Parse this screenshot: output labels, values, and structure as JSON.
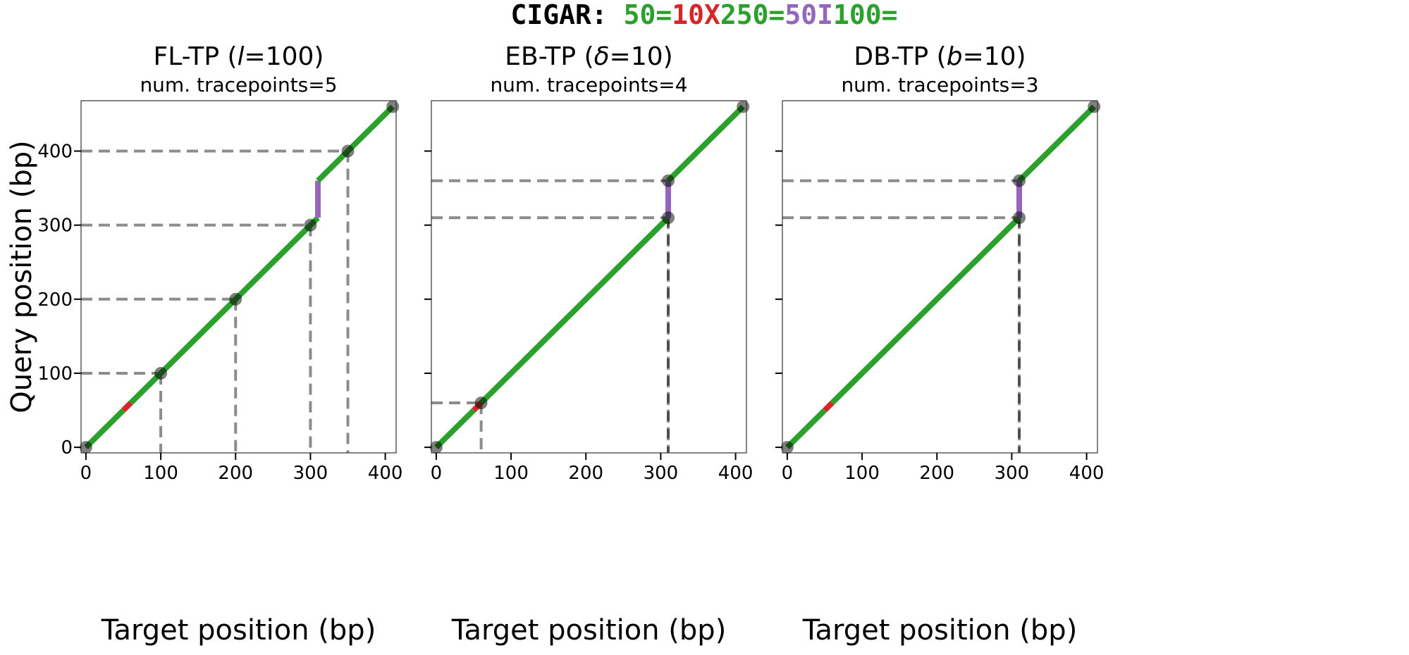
{
  "chart_data": {
    "type": "line",
    "suptitle": {
      "prefix": "CIGAR:",
      "ops": [
        {
          "text": "50=",
          "color": "#2ca02c"
        },
        {
          "text": "10X",
          "color": "#d62728"
        },
        {
          "text": "250=",
          "color": "#2ca02c"
        },
        {
          "text": "50I",
          "color": "#9467bd"
        },
        {
          "text": "100=",
          "color": "#2ca02c"
        }
      ]
    },
    "xlabel": "Target position (bp)",
    "ylabel": "Query position (bp)",
    "xlim": [
      -6.5,
      414.5
    ],
    "ylim": [
      -7.5,
      468
    ],
    "xticks": [
      0,
      100,
      200,
      300,
      400
    ],
    "yticks": [
      0,
      100,
      200,
      300,
      400
    ],
    "alignment_segments": [
      {
        "op": "match",
        "color": "#2ca02c",
        "from": [
          0,
          0
        ],
        "to": [
          50,
          50
        ]
      },
      {
        "op": "mismatch",
        "color": "#d62728",
        "from": [
          50,
          50
        ],
        "to": [
          60,
          60
        ]
      },
      {
        "op": "match",
        "color": "#2ca02c",
        "from": [
          60,
          60
        ],
        "to": [
          310,
          310
        ]
      },
      {
        "op": "insertion",
        "color": "#9467bd",
        "from": [
          310,
          310
        ],
        "to": [
          310,
          360
        ]
      },
      {
        "op": "match",
        "color": "#2ca02c",
        "from": [
          310,
          360
        ],
        "to": [
          410,
          460
        ]
      }
    ],
    "panels": [
      {
        "title_main": "FL-TP (",
        "title_param": "l",
        "title_rest": "=100)",
        "subtitle": "num. tracepoints=5",
        "show_yticklabels": true,
        "tracepoints": [
          [
            0,
            0
          ],
          [
            100,
            100
          ],
          [
            200,
            200
          ],
          [
            300,
            300
          ],
          [
            350,
            400
          ],
          [
            410,
            460
          ]
        ],
        "guides": [
          [
            100,
            100
          ],
          [
            200,
            200
          ],
          [
            300,
            300
          ],
          [
            350,
            400
          ]
        ]
      },
      {
        "title_main": "EB-TP (",
        "title_param": "δ",
        "title_rest": "=10)",
        "subtitle": "num. tracepoints=4",
        "show_yticklabels": false,
        "tracepoints": [
          [
            0,
            0
          ],
          [
            60,
            60
          ],
          [
            310,
            310
          ],
          [
            310,
            360
          ],
          [
            410,
            460
          ]
        ],
        "guides": [
          [
            60,
            60
          ],
          [
            310,
            310
          ],
          [
            310,
            360
          ]
        ]
      },
      {
        "title_main": "DB-TP (",
        "title_param": "b",
        "title_rest": "=10)",
        "subtitle": "num. tracepoints=3",
        "show_yticklabels": false,
        "tracepoints": [
          [
            0,
            0
          ],
          [
            310,
            310
          ],
          [
            310,
            360
          ],
          [
            410,
            460
          ]
        ],
        "guides": [
          [
            310,
            310
          ],
          [
            310,
            360
          ]
        ]
      }
    ]
  }
}
